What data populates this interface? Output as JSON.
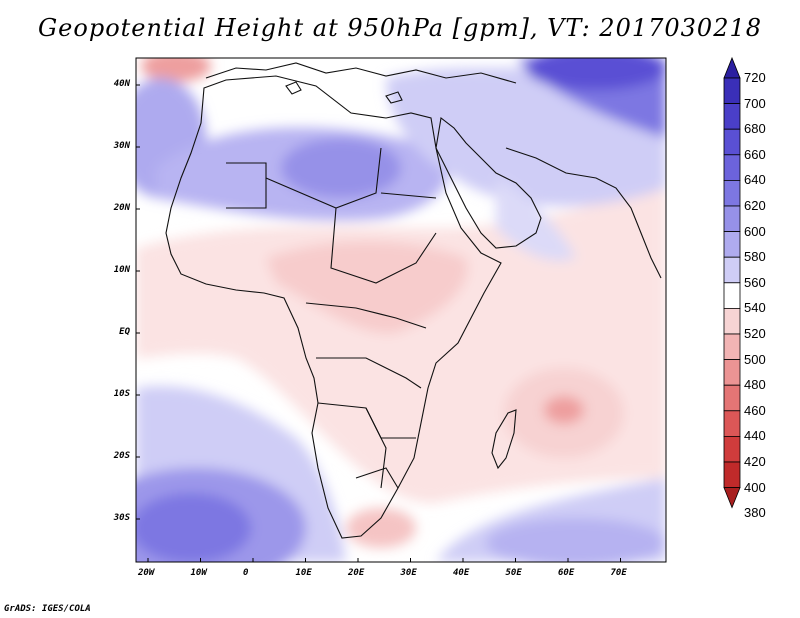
{
  "title": "Geopotential Height at 950hPa [gpm], VT: 2017030218",
  "credit": "GrADS: IGES/COLA",
  "map": {
    "variable": "Geopotential Height",
    "level": "950hPa",
    "units": "gpm",
    "valid_time": "2017030218",
    "lon_ticks": [
      "20W",
      "10W",
      "0",
      "10E",
      "20E",
      "30E",
      "40E",
      "50E",
      "60E",
      "70E"
    ],
    "lat_ticks": [
      "40N",
      "30N",
      "20N",
      "10N",
      "EQ",
      "10S",
      "20S",
      "30S"
    ]
  },
  "colorbar": {
    "levels": [
      "720",
      "700",
      "680",
      "660",
      "640",
      "620",
      "600",
      "580",
      "560",
      "540",
      "520",
      "500",
      "480",
      "460",
      "440",
      "420",
      "400",
      "380"
    ],
    "colors_top_to_bottom": [
      "#2b1fa0",
      "#3a2fb8",
      "#4a3fc8",
      "#5a50d4",
      "#6c63dc",
      "#7d77e2",
      "#9691e8",
      "#afabef",
      "#cfcdf6",
      "#ffffff",
      "#f7d4d4",
      "#f2b4b4",
      "#ec9494",
      "#e47575",
      "#dc5757",
      "#d03c3c",
      "#c02a2a",
      "#a81f1f"
    ]
  },
  "colors": {
    "frame": "#000000",
    "coast": "#111111"
  }
}
